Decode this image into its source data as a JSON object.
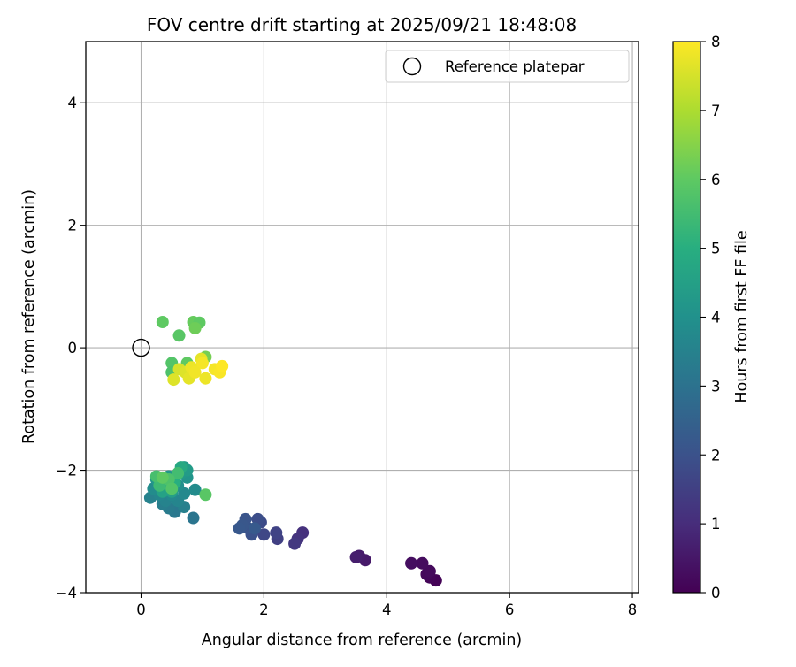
{
  "chart_data": {
    "type": "scatter",
    "title": "FOV centre drift starting at 2025/09/21 18:48:08",
    "xlabel": "Angular distance from reference (arcmin)",
    "ylabel": "Rotation from reference (arcmin)",
    "xlim": [
      -0.9,
      8.1
    ],
    "ylim": [
      -4.0,
      5.0
    ],
    "xticks": [
      0,
      2,
      4,
      6,
      8
    ],
    "yticks": [
      -4,
      -2,
      0,
      2,
      4
    ],
    "xtick_labels": [
      "0",
      "2",
      "4",
      "6",
      "8"
    ],
    "ytick_labels": [
      "−4",
      "−2",
      "0",
      "2",
      "4"
    ],
    "grid": true,
    "legend": {
      "location": "upper right",
      "entries": [
        {
          "label": "Reference platepar",
          "marker": "open-circle"
        }
      ]
    },
    "reference_point": {
      "x": 0,
      "y": 0,
      "label": "Reference platepar"
    },
    "colorbar": {
      "label": "Hours from first FF file",
      "colormap": "viridis",
      "range": [
        0,
        8
      ],
      "ticks": [
        0,
        1,
        2,
        3,
        4,
        5,
        6,
        7,
        8
      ],
      "tick_labels": [
        "0",
        "1",
        "2",
        "3",
        "4",
        "5",
        "6",
        "7",
        "8"
      ]
    },
    "points": [
      {
        "x": 4.8,
        "y": -3.8,
        "c": 0.05
      },
      {
        "x": 4.7,
        "y": -3.75,
        "c": 0.1
      },
      {
        "x": 4.65,
        "y": -3.7,
        "c": 0.15
      },
      {
        "x": 4.7,
        "y": -3.65,
        "c": 0.2
      },
      {
        "x": 4.58,
        "y": -3.52,
        "c": 0.25
      },
      {
        "x": 4.4,
        "y": -3.52,
        "c": 0.3
      },
      {
        "x": 3.65,
        "y": -3.47,
        "c": 0.55
      },
      {
        "x": 3.55,
        "y": -3.4,
        "c": 0.6
      },
      {
        "x": 3.5,
        "y": -3.42,
        "c": 0.65
      },
      {
        "x": 2.63,
        "y": -3.02,
        "c": 1.1
      },
      {
        "x": 2.55,
        "y": -3.12,
        "c": 1.2
      },
      {
        "x": 2.5,
        "y": -3.2,
        "c": 1.3
      },
      {
        "x": 2.22,
        "y": -3.12,
        "c": 1.5
      },
      {
        "x": 2.2,
        "y": -3.02,
        "c": 1.6
      },
      {
        "x": 2.0,
        "y": -3.05,
        "c": 1.7
      },
      {
        "x": 1.95,
        "y": -2.85,
        "c": 1.8
      },
      {
        "x": 1.9,
        "y": -2.8,
        "c": 1.9
      },
      {
        "x": 1.8,
        "y": -3.05,
        "c": 2.0
      },
      {
        "x": 1.75,
        "y": -2.95,
        "c": 2.05
      },
      {
        "x": 1.7,
        "y": -2.8,
        "c": 2.1
      },
      {
        "x": 1.65,
        "y": -2.9,
        "c": 2.15
      },
      {
        "x": 1.6,
        "y": -2.95,
        "c": 2.2
      },
      {
        "x": 1.85,
        "y": -2.95,
        "c": 2.25
      },
      {
        "x": 0.85,
        "y": -2.78,
        "c": 3.1
      },
      {
        "x": 0.55,
        "y": -2.68,
        "c": 3.2
      },
      {
        "x": 0.45,
        "y": -2.62,
        "c": 3.3
      },
      {
        "x": 0.35,
        "y": -2.55,
        "c": 3.4
      },
      {
        "x": 0.7,
        "y": -2.6,
        "c": 3.45
      },
      {
        "x": 0.15,
        "y": -2.45,
        "c": 3.5
      },
      {
        "x": 0.4,
        "y": -2.5,
        "c": 3.55
      },
      {
        "x": 0.6,
        "y": -2.5,
        "c": 3.6
      },
      {
        "x": 0.3,
        "y": -2.4,
        "c": 3.65
      },
      {
        "x": 0.5,
        "y": -2.4,
        "c": 3.7
      },
      {
        "x": 0.7,
        "y": -2.38,
        "c": 3.75
      },
      {
        "x": 0.88,
        "y": -2.32,
        "c": 3.8
      },
      {
        "x": 0.2,
        "y": -2.3,
        "c": 3.85
      },
      {
        "x": 0.4,
        "y": -2.28,
        "c": 3.9
      },
      {
        "x": 0.6,
        "y": -2.25,
        "c": 3.95
      },
      {
        "x": 0.3,
        "y": -2.2,
        "c": 4.0
      },
      {
        "x": 0.55,
        "y": -2.15,
        "c": 4.05
      },
      {
        "x": 0.75,
        "y": -2.12,
        "c": 4.1
      },
      {
        "x": 0.45,
        "y": -2.1,
        "c": 4.15
      },
      {
        "x": 0.25,
        "y": -2.15,
        "c": 4.2
      },
      {
        "x": 0.65,
        "y": -2.05,
        "c": 4.25
      },
      {
        "x": 0.7,
        "y": -1.95,
        "c": 4.3
      },
      {
        "x": 0.75,
        "y": -2.0,
        "c": 4.35
      },
      {
        "x": 0.5,
        "y": -2.35,
        "c": 4.45
      },
      {
        "x": 0.35,
        "y": -2.35,
        "c": 4.6
      },
      {
        "x": 0.65,
        "y": -1.95,
        "c": 4.8
      },
      {
        "x": 0.55,
        "y": -2.2,
        "c": 5.0
      },
      {
        "x": 0.4,
        "y": -2.18,
        "c": 5.2
      },
      {
        "x": 0.3,
        "y": -2.25,
        "c": 5.4
      },
      {
        "x": 0.6,
        "y": -2.05,
        "c": 5.5
      },
      {
        "x": 0.25,
        "y": -2.1,
        "c": 5.6
      },
      {
        "x": 0.45,
        "y": -2.15,
        "c": 5.7
      },
      {
        "x": 0.5,
        "y": -2.3,
        "c": 5.8
      },
      {
        "x": 1.05,
        "y": -2.4,
        "c": 5.9
      },
      {
        "x": 0.35,
        "y": -2.12,
        "c": 6.0
      },
      {
        "x": 0.35,
        "y": 0.42,
        "c": 6.0
      },
      {
        "x": 0.62,
        "y": 0.2,
        "c": 5.9
      },
      {
        "x": 0.85,
        "y": 0.42,
        "c": 6.1
      },
      {
        "x": 0.95,
        "y": 0.41,
        "c": 6.0
      },
      {
        "x": 0.88,
        "y": 0.32,
        "c": 6.2
      },
      {
        "x": 0.5,
        "y": -0.25,
        "c": 5.8
      },
      {
        "x": 0.75,
        "y": -0.25,
        "c": 6.0
      },
      {
        "x": 1.05,
        "y": -0.15,
        "c": 6.3
      },
      {
        "x": 0.5,
        "y": -0.4,
        "c": 5.7
      },
      {
        "x": 0.8,
        "y": -0.45,
        "c": 5.9
      },
      {
        "x": 0.62,
        "y": -0.35,
        "c": 7.5
      },
      {
        "x": 0.72,
        "y": -0.4,
        "c": 7.6
      },
      {
        "x": 0.78,
        "y": -0.5,
        "c": 7.7
      },
      {
        "x": 0.82,
        "y": -0.32,
        "c": 7.8
      },
      {
        "x": 0.98,
        "y": -0.18,
        "c": 7.7
      },
      {
        "x": 1.0,
        "y": -0.25,
        "c": 7.9
      },
      {
        "x": 1.05,
        "y": -0.5,
        "c": 7.8
      },
      {
        "x": 1.2,
        "y": -0.35,
        "c": 7.9
      },
      {
        "x": 1.28,
        "y": -0.4,
        "c": 7.95
      },
      {
        "x": 1.32,
        "y": -0.3,
        "c": 8.0
      },
      {
        "x": 0.53,
        "y": -0.52,
        "c": 7.6
      },
      {
        "x": 0.88,
        "y": -0.4,
        "c": 7.85
      }
    ]
  }
}
